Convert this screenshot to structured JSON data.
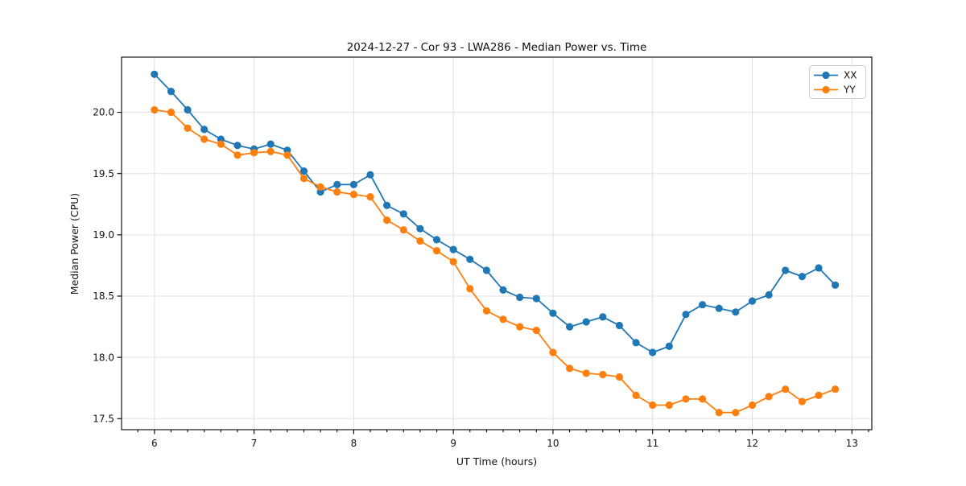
{
  "chart_data": {
    "type": "line",
    "title": "2024-12-27 - Cor 93 - LWA286 - Median Power vs. Time",
    "xlabel": "UT Time (hours)",
    "ylabel": "Median Power (CPU)",
    "xlim": [
      5.67,
      13.2
    ],
    "ylim": [
      17.41,
      20.45
    ],
    "x_ticks": [
      6,
      7,
      8,
      9,
      10,
      11,
      12,
      13
    ],
    "x_tick_labels": [
      "6",
      "7",
      "8",
      "9",
      "10",
      "11",
      "12",
      "13"
    ],
    "y_ticks": [
      17.5,
      18.0,
      18.5,
      19.0,
      19.5,
      20.0
    ],
    "y_tick_labels": [
      "17.5",
      "18.0",
      "18.5",
      "19.0",
      "19.5",
      "20.0"
    ],
    "x_minor_step": 0.16667,
    "grid": true,
    "legend_position": "upper right",
    "marker": "circle",
    "x": [
      6.0,
      6.1667,
      6.3333,
      6.5,
      6.6667,
      6.8333,
      7.0,
      7.1667,
      7.3333,
      7.5,
      7.6667,
      7.8333,
      8.0,
      8.1667,
      8.3333,
      8.5,
      8.6667,
      8.8333,
      9.0,
      9.1667,
      9.3333,
      9.5,
      9.6667,
      9.8333,
      10.0,
      10.1667,
      10.3333,
      10.5,
      10.6667,
      10.8333,
      11.0,
      11.1667,
      11.3333,
      11.5,
      11.6667,
      11.8333,
      12.0,
      12.1667,
      12.3333,
      12.5,
      12.6667,
      12.8333
    ],
    "series": [
      {
        "name": "XX",
        "color": "#1f77b4",
        "values": [
          20.31,
          20.17,
          20.02,
          19.86,
          19.78,
          19.73,
          19.7,
          19.74,
          19.69,
          19.52,
          19.35,
          19.41,
          19.41,
          19.49,
          19.24,
          19.17,
          19.05,
          18.96,
          18.88,
          18.8,
          18.71,
          18.55,
          18.49,
          18.48,
          18.36,
          18.25,
          18.29,
          18.33,
          18.26,
          18.12,
          18.04,
          18.09,
          18.35,
          18.43,
          18.4,
          18.37,
          18.46,
          18.51,
          18.71,
          18.66,
          18.73,
          18.59
        ]
      },
      {
        "name": "YY",
        "color": "#ff7f0e",
        "values": [
          20.02,
          20.0,
          19.87,
          19.78,
          19.74,
          19.65,
          19.67,
          19.68,
          19.65,
          19.46,
          19.39,
          19.35,
          19.33,
          19.31,
          19.12,
          19.04,
          18.95,
          18.87,
          18.78,
          18.56,
          18.38,
          18.31,
          18.25,
          18.22,
          18.04,
          17.91,
          17.87,
          17.86,
          17.84,
          17.69,
          17.61,
          17.61,
          17.66,
          17.66,
          17.55,
          17.55,
          17.61,
          17.68,
          17.74,
          17.64,
          17.69,
          17.74
        ]
      }
    ],
    "colors": {
      "series_xx": "#1f77b4",
      "series_yy": "#ff7f0e",
      "grid": "#e0e0e0",
      "background": "#ffffff",
      "text": "#111111"
    }
  }
}
